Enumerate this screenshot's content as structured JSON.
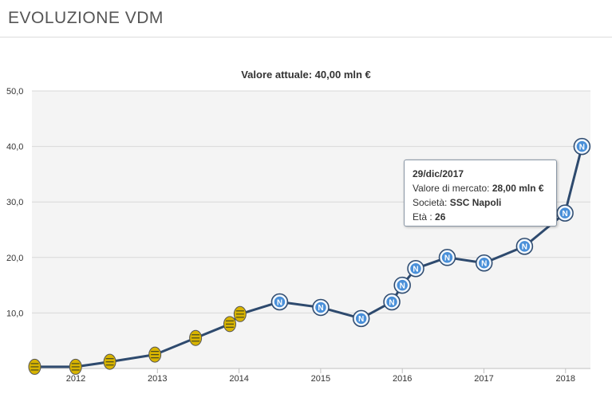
{
  "header": {
    "title": "EVOLUZIONE VDM"
  },
  "tooltip": {
    "date": "29/dic/2017",
    "value_label": "Valore di mercato:",
    "value": "28,00 mln €",
    "club_label": "Società:",
    "club": "SSC Napoli",
    "age_label": "Età :",
    "age": "26"
  },
  "colors": {
    "line": "#2e4a6e",
    "napoli": "#4a90d9",
    "verona": "#d8b400",
    "grid": "#d8d8d8",
    "plot_bg": "#f4f4f4"
  },
  "chart_data": {
    "type": "line",
    "title": "Valore attuale: 40,00 mln €",
    "xlabel": "",
    "ylabel": "",
    "ylim": [
      0,
      50
    ],
    "yticks": [
      "",
      "10,0",
      "20,0",
      "30,0",
      "40,0",
      "50,0"
    ],
    "xticks": [
      "2012",
      "2013",
      "2014",
      "2015",
      "2016",
      "2017",
      "2018"
    ],
    "grid": true,
    "series": [
      {
        "x": [
          "2011-07-01",
          "2011-12-31",
          "2012-06-01",
          "2012-12-20",
          "2013-06-20",
          "2013-11-20",
          "2014-01-05",
          "2014-07-01",
          "2015-01-01",
          "2015-07-01",
          "2015-11-15",
          "2016-01-01",
          "2016-03-01",
          "2016-07-20",
          "2017-01-01",
          "2017-07-01",
          "2017-12-29",
          "2018-03-15"
        ],
        "y": [
          0.3,
          0.3,
          1.2,
          2.5,
          5.5,
          8.0,
          9.8,
          12.0,
          11.0,
          9.0,
          12.0,
          15.0,
          18.0,
          20.0,
          19.0,
          22.0,
          28.0,
          40.0
        ],
        "club": [
          "verona",
          "verona",
          "verona",
          "verona",
          "verona",
          "verona",
          "verona",
          "napoli",
          "napoli",
          "napoli",
          "napoli",
          "napoli",
          "napoli",
          "napoli",
          "napoli",
          "napoli",
          "napoli",
          "napoli"
        ]
      }
    ]
  }
}
